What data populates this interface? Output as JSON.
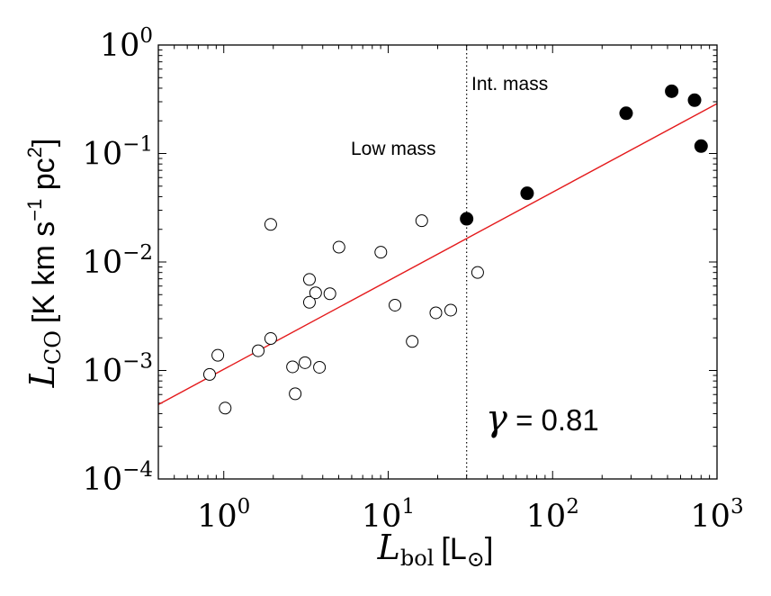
{
  "chart_data": {
    "type": "scatter",
    "xlabel": "L_bol [L_⊙]",
    "ylabel": "L_CO [K km s^-1 pc^2]",
    "xscale": "log",
    "yscale": "log",
    "xlim": [
      0.4,
      1000
    ],
    "ylim": [
      0.0001,
      1
    ],
    "grid": false,
    "x_tick_labels": [
      "10^0",
      "10^1",
      "10^2",
      "10^3"
    ],
    "y_tick_labels": [
      "10^-4",
      "10^-3",
      "10^-2",
      "10^-1",
      "10^0"
    ],
    "series": [
      {
        "marker": "open-circle",
        "color": "#000000",
        "points": [
          [
            0.82,
            0.00092
          ],
          [
            0.92,
            0.00138
          ],
          [
            1.02,
            0.00045
          ],
          [
            1.62,
            0.00152
          ],
          [
            1.93,
            0.00197
          ],
          [
            1.93,
            0.0222
          ],
          [
            2.62,
            0.00108
          ],
          [
            2.72,
            0.00061
          ],
          [
            3.12,
            0.00118
          ],
          [
            3.32,
            0.00425
          ],
          [
            3.32,
            0.0069
          ],
          [
            3.62,
            0.0052
          ],
          [
            3.82,
            0.00107
          ],
          [
            4.42,
            0.0051
          ],
          [
            5.02,
            0.0137
          ],
          [
            9.02,
            0.0123
          ],
          [
            11.0,
            0.004
          ],
          [
            14.0,
            0.00185
          ],
          [
            16.0,
            0.024
          ],
          [
            19.5,
            0.0034
          ],
          [
            24.0,
            0.0036
          ],
          [
            35.0,
            0.008
          ]
        ]
      },
      {
        "marker": "filled-circle",
        "color": "#000000",
        "points": [
          [
            30.0,
            0.025
          ],
          [
            70.0,
            0.043
          ],
          [
            280.0,
            0.235
          ],
          [
            530.0,
            0.375
          ],
          [
            730.0,
            0.31
          ],
          [
            800.0,
            0.117
          ]
        ]
      }
    ],
    "fit_line": {
      "color": "#e41a1c",
      "gamma": 0.81,
      "x": [
        0.4,
        1000
      ],
      "y": [
        0.000485,
        0.288
      ]
    },
    "divider": {
      "x": 30,
      "style": "dotted"
    },
    "annotations": {
      "low_mass": "Low mass",
      "int_mass": "Int. mass",
      "gamma_symbol": "γ",
      "gamma_text": " = 0.81"
    },
    "axis_labels": {
      "x_main": "L",
      "x_sub": "bol",
      "x_unit": "[L",
      "x_sun": "⊙",
      "x_close": "]",
      "y_main": "L",
      "y_sub": "CO",
      "y_unit_a": "[K km s",
      "y_sup1": "−1",
      "y_unit_b": " pc",
      "y_sup2": "2",
      "y_close": "]"
    }
  }
}
